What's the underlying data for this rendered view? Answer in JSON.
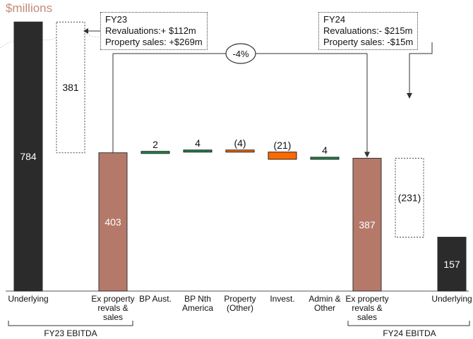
{
  "unit_label": "$millions",
  "callouts": {
    "fy23": {
      "title": "FY23",
      "line1": "Revaluations:+ $112m",
      "line2": "Property sales: +$269m"
    },
    "fy24": {
      "title": "FY24",
      "line1": "Revaluations:- $215m",
      "line2": "Property sales: -$15m"
    }
  },
  "change_badge": "-4%",
  "group_labels": {
    "fy23": "FY23 EBITDA",
    "fy24": "FY24 EBITDA"
  },
  "colors": {
    "underlying": "#2b2b2b",
    "ex_property": "#b5796a",
    "positive": "#1e8a4c",
    "negative": "#ff6a00"
  },
  "chart_data": {
    "type": "bar",
    "subtype": "waterfall",
    "categories": [
      "Underlying",
      "",
      "Ex property revals & sales",
      "BP Aust.",
      "BP Nth America",
      "Property (Other)",
      "Invest.",
      "Admin & Other",
      "Ex property revals & sales",
      "",
      "Underlying"
    ],
    "values": [
      784,
      -381,
      403,
      2,
      4,
      -4,
      -21,
      4,
      387,
      -231,
      157
    ],
    "value_labels": [
      "784",
      "381",
      "403",
      "2",
      "4",
      "(4)",
      "(21)",
      "4",
      "387",
      "(231)",
      "157"
    ],
    "ylim": [
      0,
      800
    ],
    "grid": false
  }
}
